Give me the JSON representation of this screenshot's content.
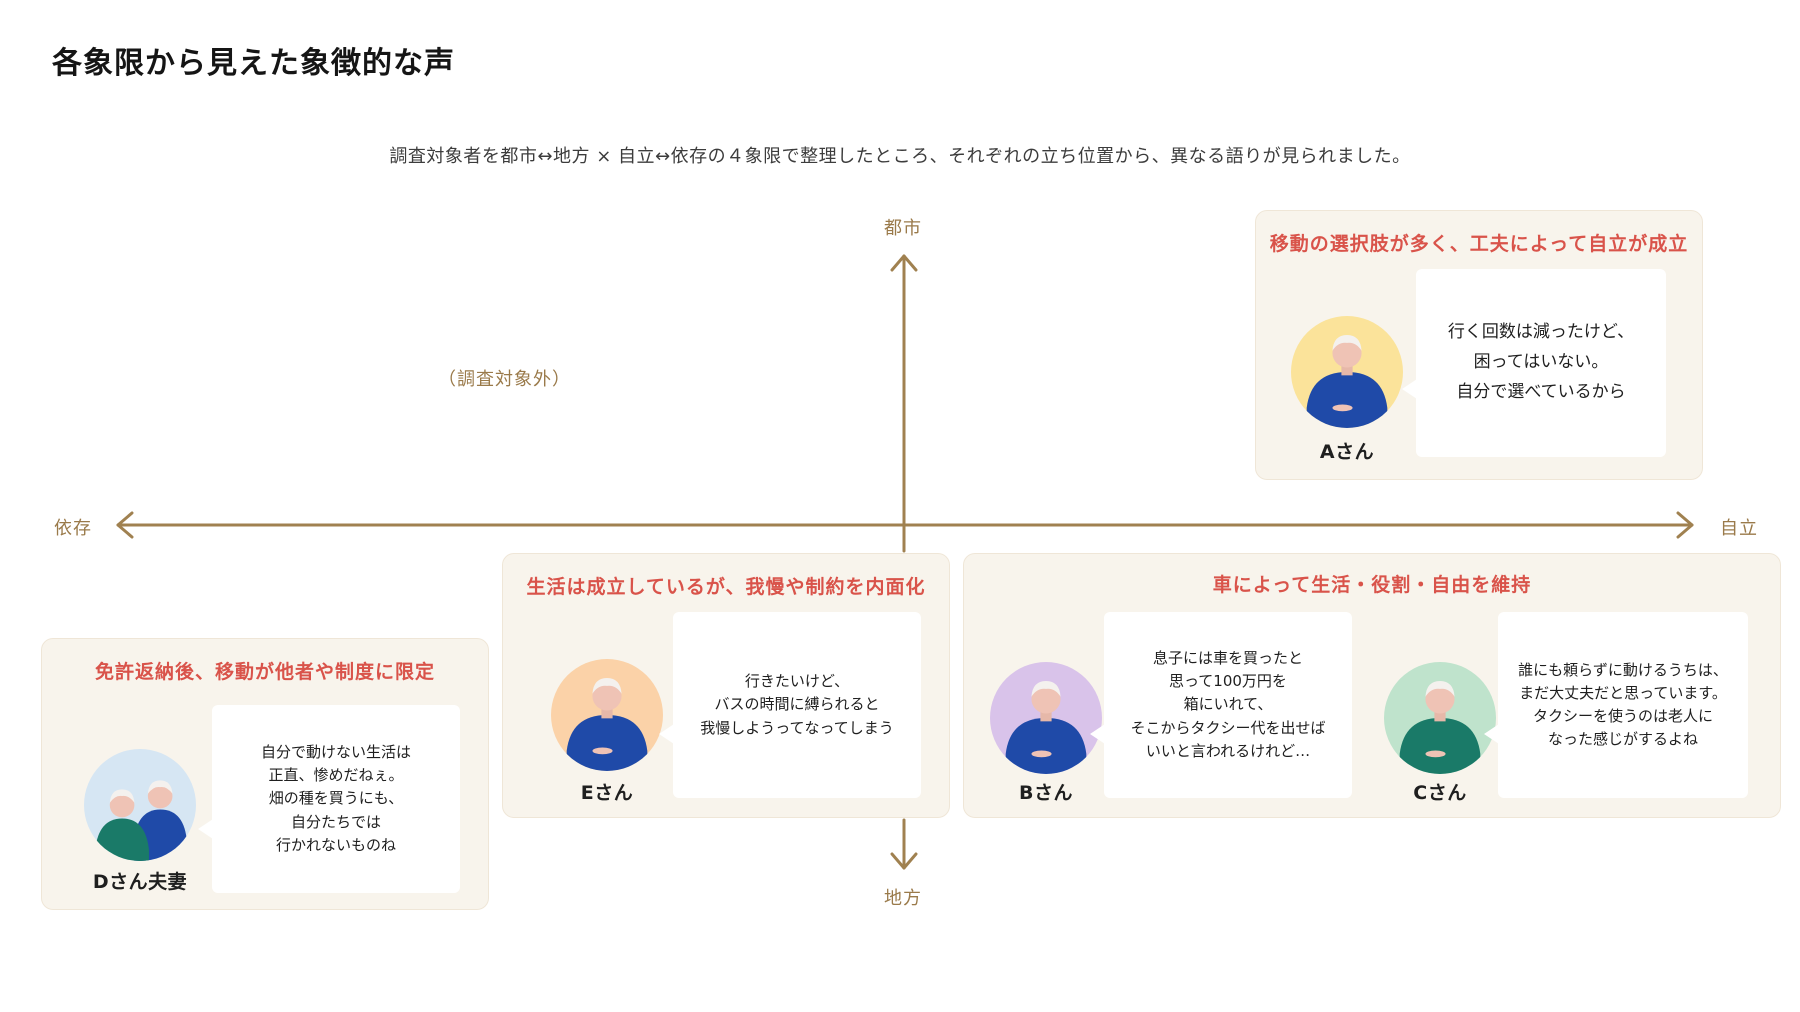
{
  "title": "各象限から見えた象徴的な声",
  "intro": "調査対象者を都市↔地方 × 自立↔依存の４象限で整理したところ、それぞれの立ち位置から、異なる語りが見られました。",
  "axes": {
    "top": "都市",
    "bottom": "地方",
    "left": "依存",
    "right": "自立",
    "color": "#a08150"
  },
  "excluded_label": "（調査対象外）",
  "colors": {
    "card_bg": "#f8f4ec",
    "heading": "#d9534a",
    "axis": "#a08150",
    "shirt_blue": "#1f4aa8",
    "shirt_green": "#1a7a68"
  },
  "quadrants": {
    "urban_independent": {
      "heading": "移動の選択肢が多く、工夫によって自立が成立",
      "person": {
        "name": "Aさん",
        "avatar_bg": "#fbe39a",
        "shirt": "#1f4aa8",
        "icon": "elderly-person-icon"
      },
      "quote": [
        "行く回数は減ったけど、",
        "困ってはいない。",
        "自分で選べているから"
      ]
    },
    "rural_dependent": {
      "heading": "免許返納後、移動が他者や制度に限定",
      "person": {
        "name": "Dさん夫妻",
        "avatar_bg": "#d6e6f3",
        "icon": "elderly-couple-icon"
      },
      "quote": [
        "自分で動けない生活は",
        "正直、惨めだねぇ。",
        "畑の種を買うにも、",
        "自分たちでは",
        "行かれないものね"
      ]
    },
    "rural_middle": {
      "heading": "生活は成立しているが、我慢や制約を内面化",
      "person": {
        "name": "Eさん",
        "avatar_bg": "#fbd2a8",
        "shirt": "#1f4aa8",
        "icon": "elderly-person-icon"
      },
      "quote": [
        "行きたいけど、",
        "バスの時間に縛られると",
        "我慢しようってなってしまう"
      ]
    },
    "rural_independent": {
      "heading": "車によって生活・役割・自由を維持",
      "people": [
        {
          "name": "Bさん",
          "avatar_bg": "#d9c3ea",
          "shirt": "#1f4aa8",
          "icon": "elderly-person-icon",
          "quote": [
            "息子には車を買ったと",
            "思って100万円を",
            "箱にいれて、",
            "そこからタクシー代を出せば",
            "いいと言われるけれど…"
          ]
        },
        {
          "name": "Cさん",
          "avatar_bg": "#bfe3cc",
          "shirt": "#1a7a68",
          "icon": "elderly-person-icon",
          "quote": [
            "誰にも頼らずに動けるうちは、",
            "まだ大丈夫だと思っています。",
            "タクシーを使うのは老人に",
            "なった感じがするよね"
          ]
        }
      ]
    }
  }
}
